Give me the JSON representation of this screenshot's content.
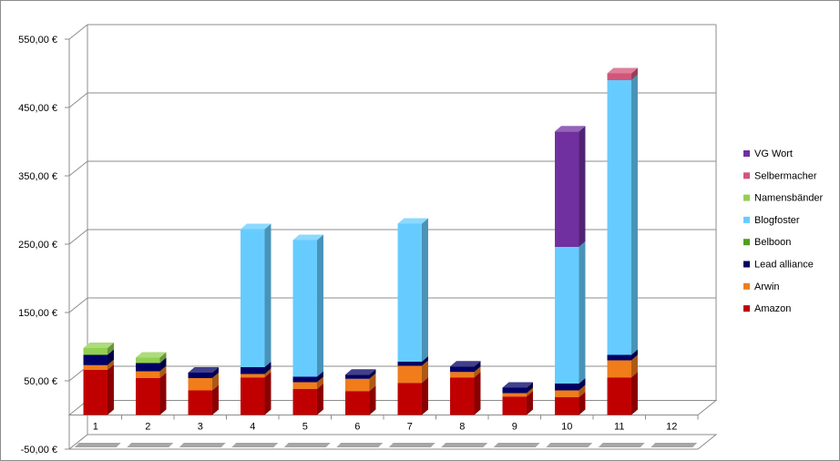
{
  "chart_data": {
    "type": "bar",
    "stacked": true,
    "three_d": true,
    "title": "",
    "xlabel": "",
    "ylabel": "",
    "categories": [
      "1",
      "2",
      "3",
      "4",
      "5",
      "6",
      "7",
      "8",
      "9",
      "10",
      "11",
      "12"
    ],
    "y_ticks": [
      -50,
      50,
      150,
      250,
      350,
      450,
      550
    ],
    "y_tick_labels": [
      "-50,00 €",
      "50,00 €",
      "150,00 €",
      "250,00 €",
      "350,00 €",
      "450,00 €",
      "550,00 €"
    ],
    "ylim": [
      -50,
      550
    ],
    "grid": true,
    "legend_position": "right",
    "series": [
      {
        "name": "Amazon",
        "color": "#c00000",
        "values": [
          66,
          54,
          36,
          55,
          38,
          35,
          47,
          55,
          27,
          26,
          55,
          0
        ]
      },
      {
        "name": "Arwin",
        "color": "#f07c1a",
        "values": [
          7,
          10,
          18,
          5,
          10,
          18,
          25,
          8,
          5,
          10,
          25,
          0
        ]
      },
      {
        "name": "Lead alliance",
        "color": "#000066",
        "values": [
          15,
          12,
          8,
          10,
          8,
          6,
          6,
          8,
          8,
          10,
          8,
          0
        ]
      },
      {
        "name": "Belboon",
        "color": "#4f9e1e",
        "values": [
          0,
          0,
          0,
          0,
          0,
          0,
          0,
          0,
          0,
          0,
          0,
          0
        ]
      },
      {
        "name": "Blogfoster",
        "color": "#66ccff",
        "values": [
          0,
          0,
          0,
          202,
          200,
          0,
          202,
          0,
          0,
          200,
          402,
          0
        ]
      },
      {
        "name": "Namensbänder",
        "color": "#92d050",
        "values": [
          10,
          8,
          0,
          0,
          0,
          0,
          0,
          0,
          0,
          0,
          0,
          0
        ]
      },
      {
        "name": "Selbermacher",
        "color": "#d2567a",
        "values": [
          0,
          0,
          0,
          0,
          0,
          0,
          0,
          0,
          0,
          0,
          10,
          0
        ]
      },
      {
        "name": "VG Wort",
        "color": "#7030a0",
        "values": [
          0,
          0,
          0,
          0,
          0,
          0,
          0,
          0,
          0,
          169,
          0,
          0
        ]
      }
    ]
  }
}
